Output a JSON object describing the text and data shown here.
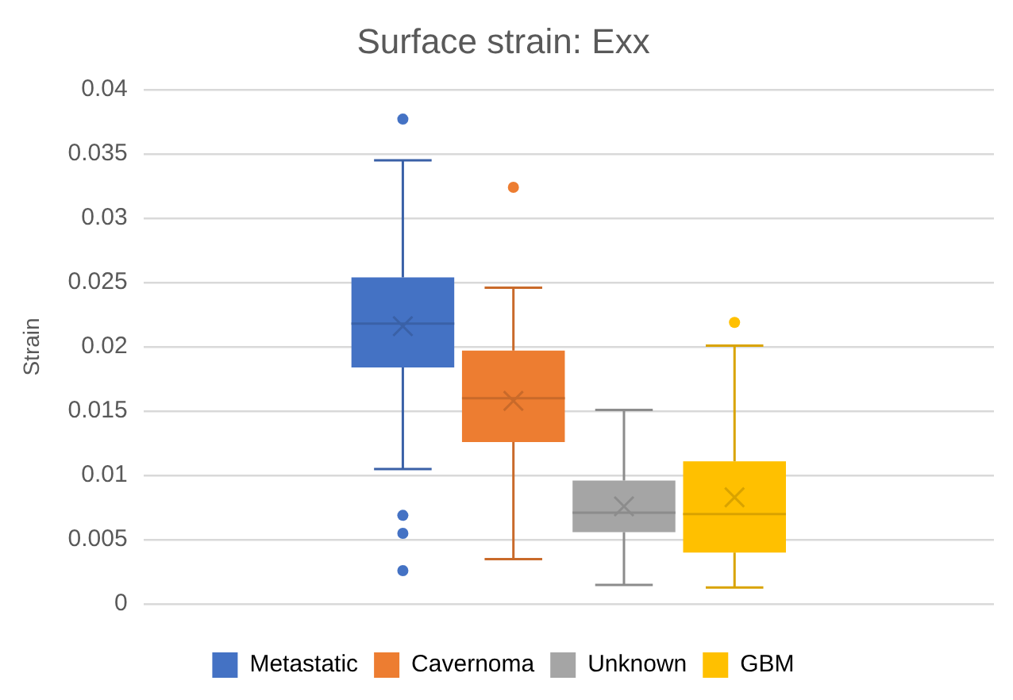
{
  "chart_data": {
    "type": "box",
    "title": "Surface strain: Exx",
    "ylabel": "Strain",
    "categories": [
      null
    ],
    "ylim": [
      0,
      0.04
    ],
    "yticks": [
      0,
      0.005,
      0.01,
      0.015,
      0.02,
      0.025,
      0.03,
      0.035,
      0.04
    ],
    "grid": "y",
    "legend": "bottom",
    "series": [
      {
        "name": "Metastatic",
        "color": "#4472c4",
        "boxes": [
          {
            "low": 0.0105,
            "q1": 0.0184,
            "median": 0.0218,
            "q3": 0.0254,
            "high": 0.0345,
            "mean": 0.0216,
            "outliers": [
              0.0377,
              0.0069,
              0.0055,
              0.0026
            ]
          }
        ]
      },
      {
        "name": "Cavernoma",
        "color": "#ed7d31",
        "boxes": [
          {
            "low": 0.0035,
            "q1": 0.0126,
            "median": 0.016,
            "q3": 0.0197,
            "high": 0.0246,
            "mean": 0.0158,
            "outliers": [
              0.0324
            ]
          }
        ]
      },
      {
        "name": "Unknown",
        "color": "#a5a5a5",
        "boxes": [
          {
            "low": 0.0015,
            "q1": 0.0056,
            "median": 0.0071,
            "q3": 0.0096,
            "high": 0.0151,
            "mean": 0.0076
          }
        ]
      },
      {
        "name": "GBM",
        "color": "#ffc000",
        "boxes": [
          {
            "low": 0.0013,
            "q1": 0.004,
            "median": 0.007,
            "q3": 0.0111,
            "high": 0.0201,
            "mean": 0.0083,
            "outliers": [
              0.0219
            ]
          }
        ]
      }
    ]
  }
}
